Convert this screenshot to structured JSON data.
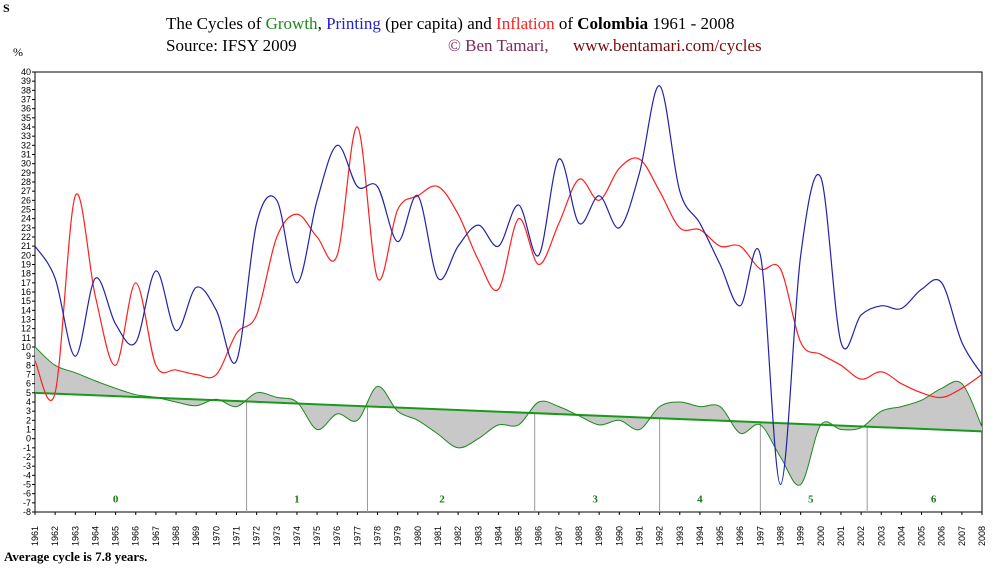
{
  "title": {
    "prefix": "The Cycles of ",
    "growth": "Growth",
    "sep1": ", ",
    "printing": "Printing",
    "percap": " (per capita) and ",
    "inflation": "Inflation",
    "of": " of ",
    "country": "Colombia",
    "years": " 1961 - 2008"
  },
  "source": "Source: IFSY 2009",
  "author": "© Ben Tamari,",
  "website": "www.bentamari.com/cycles",
  "corner_label": "S",
  "unit_label": "%",
  "footer": "Average cycle  is  7.8 years.",
  "colors": {
    "growth": "#1a8a1a",
    "printing": "#2222aa",
    "inflation": "#ff1f1f",
    "trend": "#1a9a1a",
    "fill": "#c8c8c8"
  },
  "chart_data": {
    "type": "line",
    "x": [
      1961,
      1962,
      1963,
      1964,
      1965,
      1966,
      1967,
      1968,
      1969,
      1970,
      1971,
      1972,
      1973,
      1974,
      1975,
      1976,
      1977,
      1978,
      1979,
      1980,
      1981,
      1982,
      1983,
      1984,
      1985,
      1986,
      1987,
      1988,
      1989,
      1990,
      1991,
      1992,
      1993,
      1994,
      1995,
      1996,
      1997,
      1998,
      1999,
      2000,
      2001,
      2002,
      2003,
      2004,
      2005,
      2006,
      2007,
      2008
    ],
    "xticks": [
      "1961",
      "1962",
      "1963",
      "1964",
      "1965",
      "1966",
      "1967",
      "1968",
      "1969",
      "1970",
      "1971",
      "1972",
      "1973",
      "1974",
      "1975",
      "1976",
      "1977",
      "1978",
      "1979",
      "1980",
      "1981",
      "1982",
      "1983",
      "1984",
      "1985",
      "1986",
      "1987",
      "1988",
      "1989",
      "1990",
      "1991",
      "1992",
      "1993",
      "1994",
      "1995",
      "1996",
      "1997",
      "1998",
      "1999",
      "2000",
      "2001",
      "2002",
      "2003",
      "2004",
      "2005",
      "2006",
      "2007",
      "2008"
    ],
    "ylim": [
      -8,
      40
    ],
    "yticks": [
      "-8",
      "-7",
      "-6",
      "-5",
      "-4",
      "-3",
      "-2",
      "-1",
      "0",
      "1",
      "2",
      "3",
      "4",
      "5",
      "6",
      "7",
      "8",
      "9",
      "10",
      "11",
      "12",
      "13",
      "14",
      "15",
      "16",
      "17",
      "18",
      "19",
      "20",
      "21",
      "22",
      "23",
      "24",
      "25",
      "26",
      "27",
      "28",
      "29",
      "30",
      "31",
      "32",
      "33",
      "34",
      "35",
      "36",
      "37",
      "38",
      "39",
      "40"
    ],
    "series": [
      {
        "name": "Printing",
        "values": [
          21,
          17.5,
          9,
          17.5,
          12.5,
          10.5,
          18.3,
          11.8,
          16.5,
          14,
          8.5,
          23.5,
          26,
          17,
          26,
          32,
          27.5,
          27.5,
          21.5,
          26.5,
          17.5,
          21,
          23.3,
          21,
          25.5,
          20,
          30.5,
          23.5,
          26.5,
          23,
          29,
          38.5,
          27,
          23.5,
          19,
          14.5,
          20,
          -5,
          20,
          28.5,
          10.5,
          13.5,
          14.5,
          14.2,
          16.3,
          17,
          10.5,
          7
        ]
      },
      {
        "name": "Inflation",
        "values": [
          8.5,
          5,
          26.5,
          15.5,
          8,
          17,
          8,
          7.5,
          7,
          7,
          11.5,
          13.5,
          22,
          24.5,
          22,
          20,
          34,
          17.5,
          25,
          26.5,
          27.5,
          24.5,
          19.5,
          16.3,
          24,
          19,
          23.5,
          28.3,
          26,
          29.5,
          30.5,
          27,
          23,
          22.8,
          21,
          21,
          18.5,
          18.5,
          10.5,
          9.2,
          8,
          6.5,
          7.3,
          6,
          5,
          4.5,
          5.5,
          7
        ]
      },
      {
        "name": "Growth",
        "values": [
          10,
          8,
          7.2,
          6.3,
          5.5,
          4.8,
          4.5,
          4,
          3.6,
          4.3,
          3.5,
          5,
          4.5,
          4,
          1,
          2.7,
          2,
          5.7,
          3,
          2,
          0.5,
          -1,
          0,
          1.5,
          1.5,
          4,
          3.5,
          2.5,
          1.5,
          2,
          1,
          3.5,
          4,
          3.5,
          3.5,
          0.6,
          1.5,
          -2,
          -5,
          1.5,
          1,
          1.2,
          3,
          3.5,
          4.2,
          5.5,
          6,
          1.3
        ]
      }
    ],
    "trend": {
      "name": "",
      "x": [
        1961,
        2008
      ],
      "values": [
        5.0,
        0.8
      ]
    },
    "cycle_bounds": [
      1971.5,
      1977.5,
      1985.8,
      1992,
      1997,
      2002.3
    ],
    "cycle_labels": [
      {
        "label": "0",
        "x": 1965
      },
      {
        "label": "1",
        "x": 1974
      },
      {
        "label": "2",
        "x": 1981.2
      },
      {
        "label": "3",
        "x": 1988.8
      },
      {
        "label": "4",
        "x": 1994
      },
      {
        "label": "5",
        "x": 1999.5
      },
      {
        "label": "6",
        "x": 2005.6
      }
    ],
    "cycle_label_y": -6.5,
    "grid": false
  }
}
